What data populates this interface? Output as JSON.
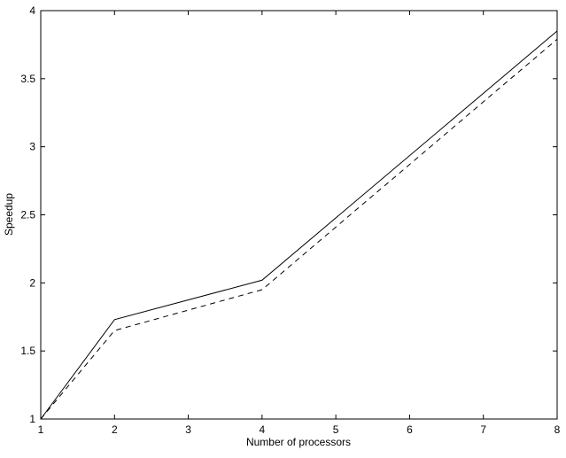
{
  "chart_data": {
    "type": "line",
    "title": "",
    "xlabel": "Number of processors",
    "ylabel": "Speedup",
    "xlim": [
      1,
      8
    ],
    "ylim": [
      1,
      4
    ],
    "xticks": [
      "1",
      "2",
      "3",
      "4",
      "5",
      "6",
      "7",
      "8"
    ],
    "yticks": [
      "1",
      "1.5",
      "2",
      "2.5",
      "3",
      "3.5",
      "4"
    ],
    "grid": false,
    "x": [
      1,
      2,
      4,
      8
    ],
    "series": [
      {
        "style": "solid",
        "color": "#000000",
        "values": [
          1,
          1.73,
          2.02,
          3.85
        ]
      },
      {
        "style": "dashed",
        "color": "#000000",
        "values": [
          1,
          1.65,
          1.95,
          3.79
        ]
      }
    ]
  }
}
